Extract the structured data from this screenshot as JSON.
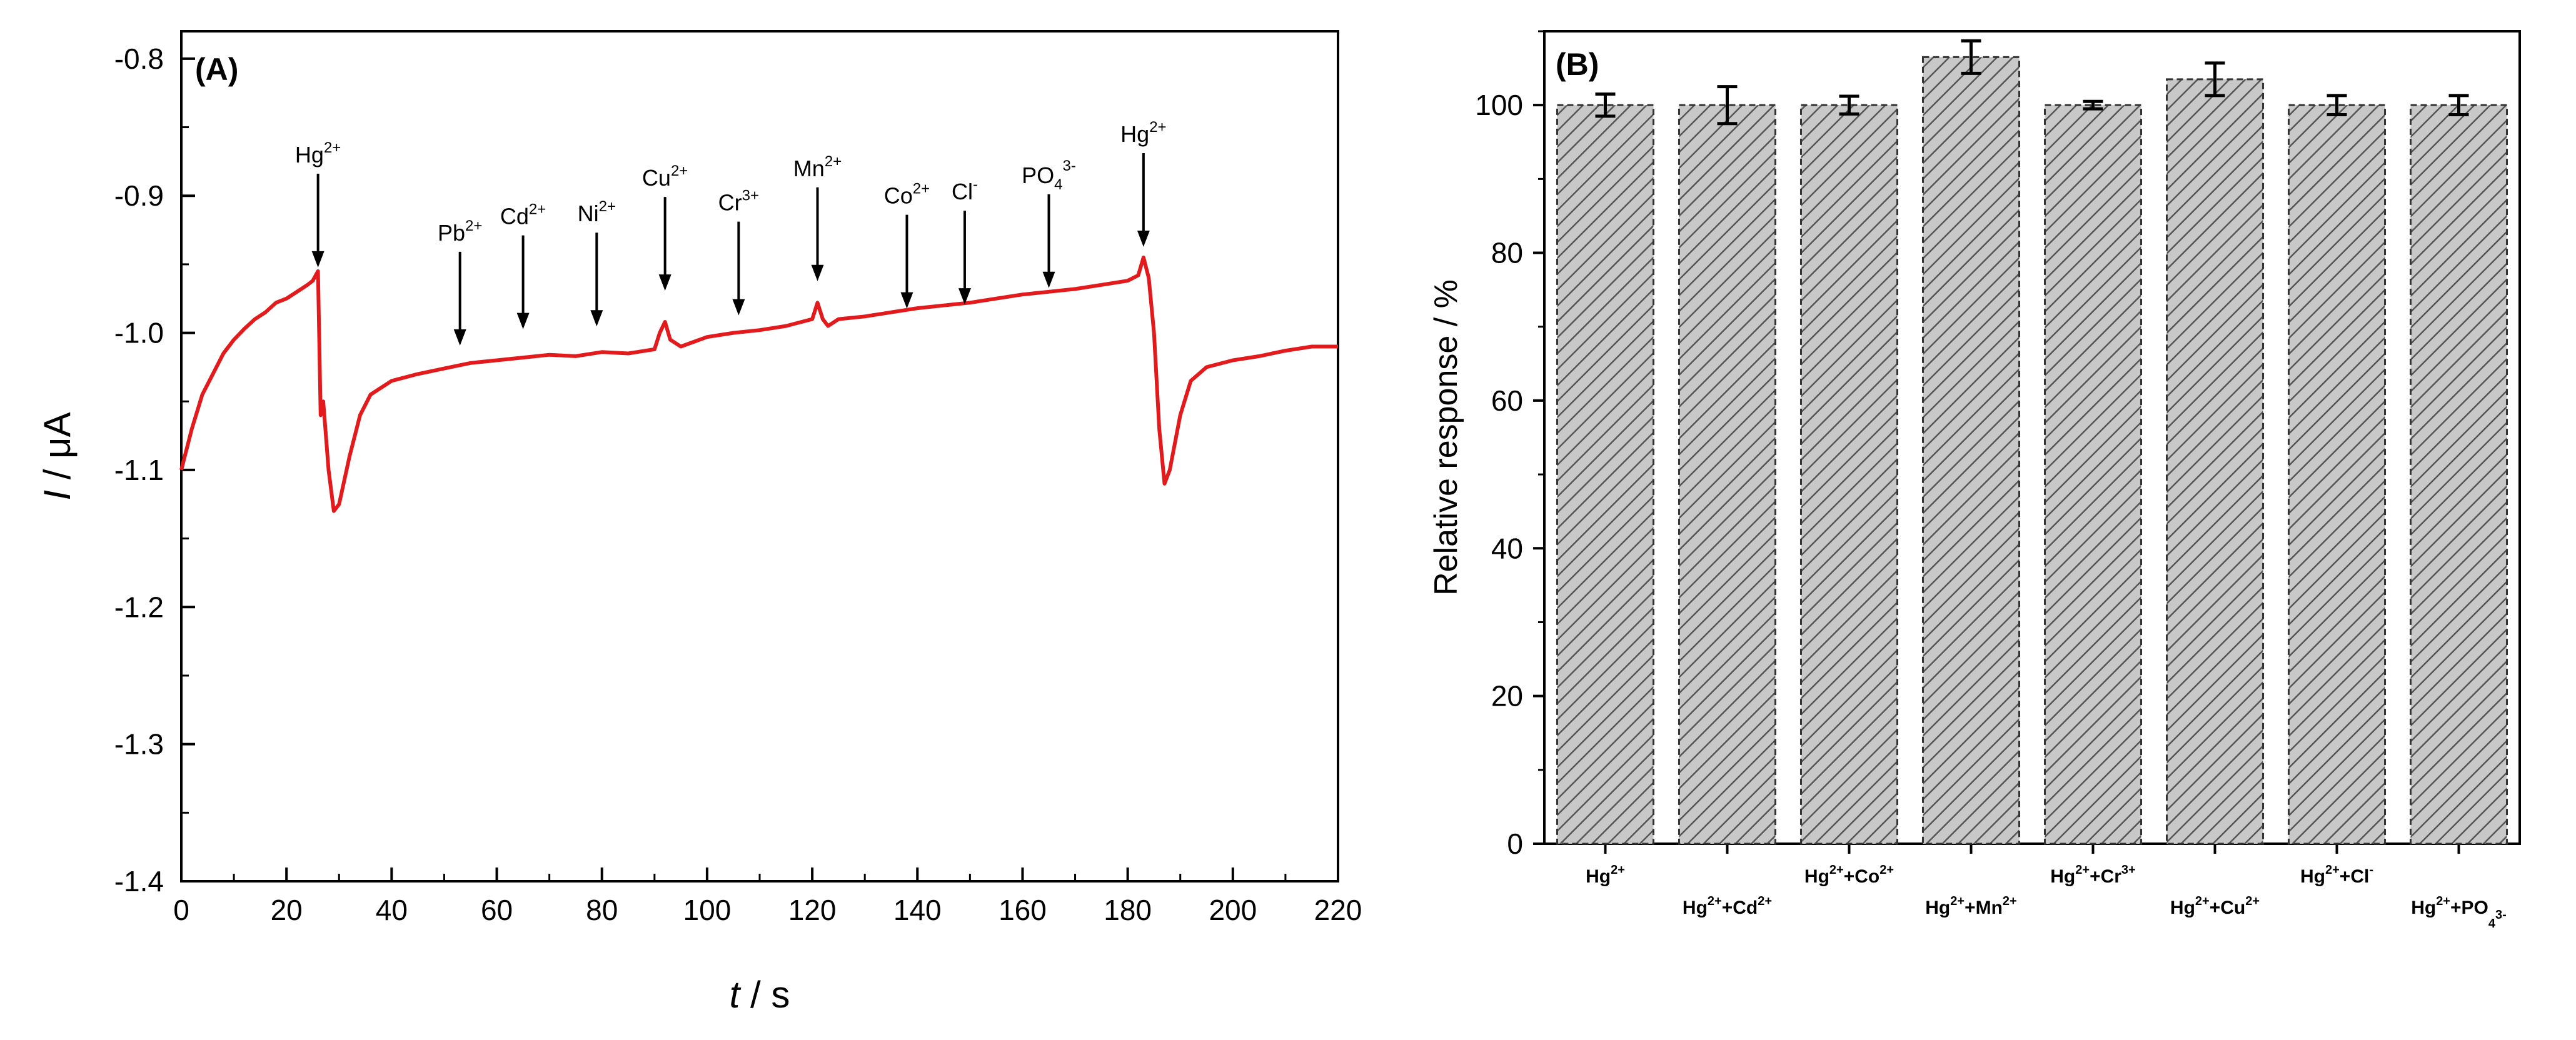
{
  "chart_data": [
    {
      "panel": "(A)",
      "type": "line",
      "xlabel": "t / s",
      "ylabel": "I / μA",
      "xlim": [
        0,
        220
      ],
      "ylim": [
        -1.4,
        -0.78
      ],
      "xticks": [
        "0",
        "20",
        "40",
        "60",
        "80",
        "100",
        "120",
        "140",
        "160",
        "180",
        "200",
        "220"
      ],
      "yticks": [
        "-0.8",
        "-0.9",
        "-1.0",
        "-1.1",
        "-1.2",
        "-1.3",
        "-1.4"
      ],
      "series_color": "#e31a1c",
      "series": [
        {
          "name": "current",
          "x": [
            0,
            2,
            4,
            6,
            8,
            10,
            12,
            14,
            16,
            18,
            20,
            22,
            24,
            25,
            26,
            26.5,
            27,
            28,
            29,
            30,
            32,
            34,
            36,
            40,
            45,
            50,
            55,
            60,
            65,
            70,
            75,
            80,
            85,
            90,
            91,
            92,
            93,
            95,
            100,
            105,
            110,
            115,
            120,
            121,
            122,
            123,
            125,
            130,
            135,
            140,
            145,
            150,
            155,
            160,
            165,
            170,
            175,
            180,
            182,
            183,
            184,
            185,
            186,
            187,
            188,
            190,
            192,
            195,
            200,
            205,
            210,
            215,
            220
          ],
          "y": [
            -1.1,
            -1.07,
            -1.045,
            -1.03,
            -1.015,
            -1.005,
            -0.997,
            -0.99,
            -0.985,
            -0.978,
            -0.975,
            -0.97,
            -0.965,
            -0.962,
            -0.955,
            -1.06,
            -1.05,
            -1.1,
            -1.13,
            -1.125,
            -1.09,
            -1.06,
            -1.045,
            -1.035,
            -1.03,
            -1.026,
            -1.022,
            -1.02,
            -1.018,
            -1.016,
            -1.017,
            -1.014,
            -1.015,
            -1.012,
            -1.0,
            -0.992,
            -1.005,
            -1.01,
            -1.003,
            -1.0,
            -0.998,
            -0.995,
            -0.99,
            -0.978,
            -0.99,
            -0.995,
            -0.99,
            -0.988,
            -0.985,
            -0.982,
            -0.98,
            -0.978,
            -0.975,
            -0.972,
            -0.97,
            -0.968,
            -0.965,
            -0.962,
            -0.958,
            -0.945,
            -0.96,
            -1.0,
            -1.07,
            -1.11,
            -1.1,
            -1.06,
            -1.035,
            -1.025,
            -1.02,
            -1.017,
            -1.013,
            -1.01,
            -1.01
          ]
        }
      ],
      "annotations": [
        {
          "x": 26,
          "y_tip": -0.955,
          "label": "Hg",
          "sup": "2+"
        },
        {
          "x": 53,
          "y_tip": -1.012,
          "label": "Pb",
          "sup": "2+"
        },
        {
          "x": 65,
          "y_tip": -1.0,
          "label": "Cd",
          "sup": "2+"
        },
        {
          "x": 79,
          "y_tip": -0.998,
          "label": "Ni",
          "sup": "2+"
        },
        {
          "x": 92,
          "y_tip": -0.972,
          "label": "Cu",
          "sup": "2+"
        },
        {
          "x": 106,
          "y_tip": -0.99,
          "label": "Cr",
          "sup": "3+"
        },
        {
          "x": 121,
          "y_tip": -0.965,
          "label": "Mn",
          "sup": "2+"
        },
        {
          "x": 138,
          "y_tip": -0.985,
          "label": "Co",
          "sup": "2+"
        },
        {
          "x": 149,
          "y_tip": -0.982,
          "label": "Cl",
          "sup": "-"
        },
        {
          "x": 165,
          "y_tip": -0.97,
          "label": "PO",
          "sub": "4",
          "sup": "3-"
        },
        {
          "x": 183,
          "y_tip": -0.94,
          "label": "Hg",
          "sup": "2+"
        }
      ]
    },
    {
      "panel": "(B)",
      "type": "bar",
      "ylabel": "Relative response / %",
      "ylim": [
        0,
        110
      ],
      "yticks": [
        "0",
        "20",
        "40",
        "60",
        "80",
        "100"
      ],
      "categories": [
        {
          "parts": [
            [
              "Hg",
              ""
            ],
            [
              "2+",
              "sup"
            ]
          ]
        },
        {
          "parts": [
            [
              "Hg",
              ""
            ],
            [
              "2+",
              "sup"
            ],
            [
              "+Cd",
              ""
            ],
            [
              "2+",
              "sup"
            ]
          ]
        },
        {
          "parts": [
            [
              "Hg",
              ""
            ],
            [
              "2+",
              "sup"
            ],
            [
              "+Co",
              ""
            ],
            [
              "2+",
              "sup"
            ]
          ]
        },
        {
          "parts": [
            [
              "Hg",
              ""
            ],
            [
              "2+",
              "sup"
            ],
            [
              "+Mn",
              ""
            ],
            [
              "2+",
              "sup"
            ]
          ]
        },
        {
          "parts": [
            [
              "Hg",
              ""
            ],
            [
              "2+",
              "sup"
            ],
            [
              "+Cr",
              ""
            ],
            [
              "3+",
              "sup"
            ]
          ]
        },
        {
          "parts": [
            [
              "Hg",
              ""
            ],
            [
              "2+",
              "sup"
            ],
            [
              "+Cu",
              ""
            ],
            [
              "2+",
              "sup"
            ]
          ]
        },
        {
          "parts": [
            [
              "Hg",
              ""
            ],
            [
              "2+",
              "sup"
            ],
            [
              "+Cl",
              ""
            ],
            [
              "-",
              "sup"
            ]
          ]
        },
        {
          "parts": [
            [
              "Hg",
              ""
            ],
            [
              "2+",
              "sup"
            ],
            [
              "+PO",
              ""
            ],
            [
              "4",
              "sub"
            ],
            [
              "3-",
              "sup"
            ]
          ]
        }
      ],
      "values": [
        100,
        100,
        100,
        106.5,
        100,
        103.5,
        100,
        100
      ],
      "errors": [
        1.5,
        2.5,
        1.2,
        2.2,
        0.5,
        2.2,
        1.3,
        1.3
      ]
    }
  ]
}
